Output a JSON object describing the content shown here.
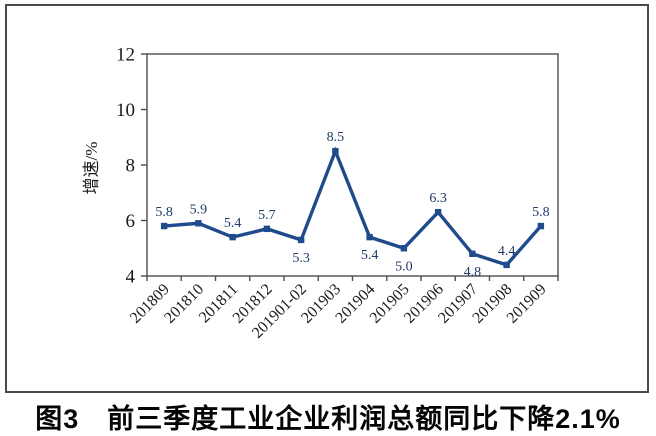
{
  "figure": {
    "caption": "图3　前三季度工业企业利润总额同比下降2.1%"
  },
  "chart_data": {
    "type": "line",
    "title": "",
    "xlabel": "",
    "ylabel": "增速/%",
    "categories": [
      "201809",
      "201810",
      "201811",
      "201812",
      "201901-02",
      "201903",
      "201904",
      "201905",
      "201906",
      "201907",
      "201908",
      "201909"
    ],
    "series": [
      {
        "name": "增速",
        "values": [
          5.8,
          5.9,
          5.4,
          5.7,
          5.3,
          8.5,
          5.4,
          5.0,
          6.3,
          4.8,
          4.4,
          5.8
        ],
        "label_positions": [
          "above",
          "above",
          "above",
          "above",
          "below",
          "above",
          "below",
          "below",
          "above",
          "below",
          "above",
          "above"
        ]
      }
    ],
    "ylim": [
      4,
      12
    ],
    "yticks": [
      4,
      6,
      8,
      10,
      12
    ],
    "grid": false,
    "legend_position": "none",
    "x_tick_rotation_deg": -45,
    "colors": {
      "line": "#1f4b8c",
      "marker": "#1f4b8c",
      "data_label": "#1e3a66",
      "axis": "#4d4d4d",
      "tick_label": "#1a1a1a"
    }
  }
}
